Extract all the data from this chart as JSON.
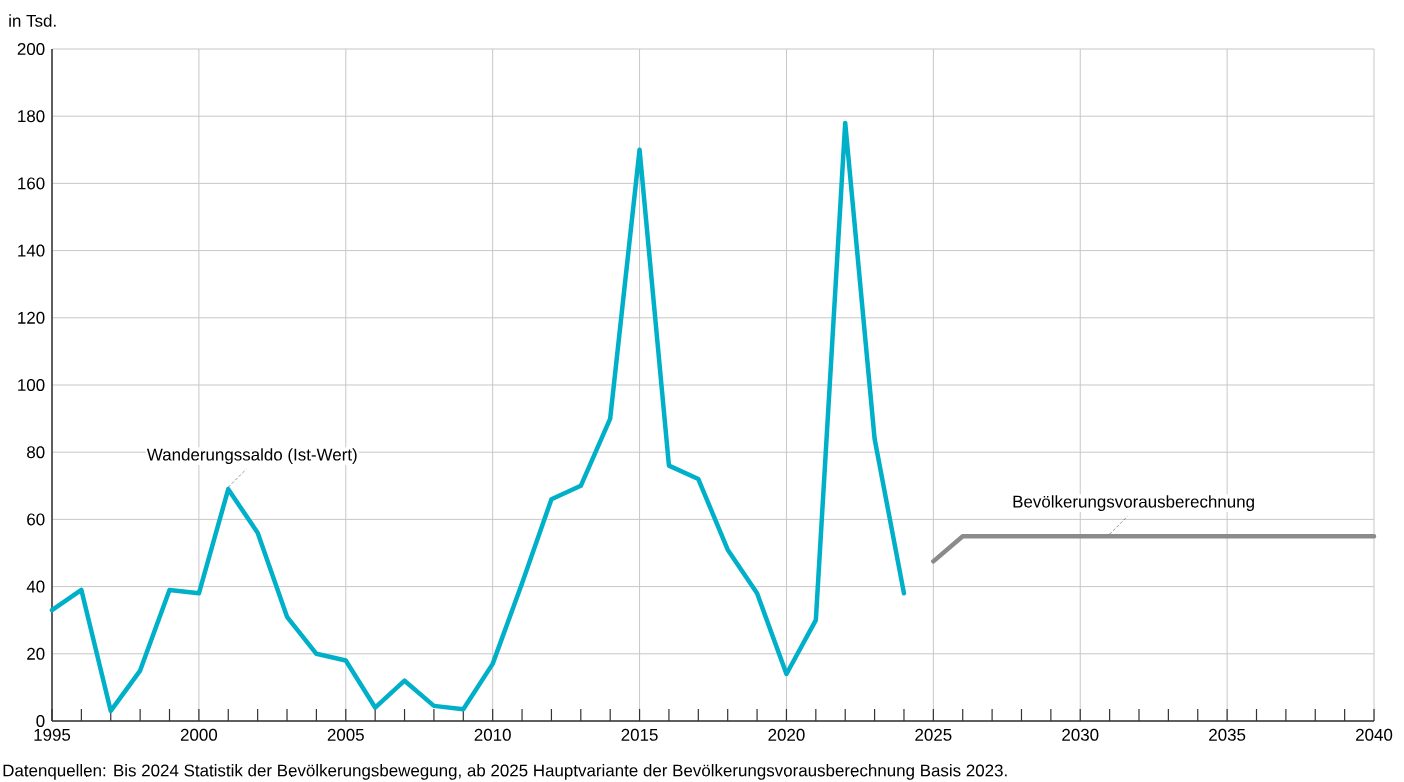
{
  "chart_data": {
    "type": "line",
    "ylabel": "in Tsd.",
    "xlim": [
      1995,
      2040
    ],
    "ylim": [
      0,
      200
    ],
    "xticks": [
      1995,
      {
        "value": 1996,
        "label": null
      },
      {
        "value": 1997,
        "label": null
      },
      {
        "value": 1998,
        "label": null
      },
      {
        "value": 1999,
        "label": null
      },
      2000,
      {
        "value": 2001,
        "label": null
      },
      {
        "value": 2002,
        "label": null
      },
      {
        "value": 2003,
        "label": null
      },
      {
        "value": 2004,
        "label": null
      },
      2005,
      {
        "value": 2006,
        "label": null
      },
      {
        "value": 2007,
        "label": null
      },
      {
        "value": 2008,
        "label": null
      },
      {
        "value": 2009,
        "label": null
      },
      2010,
      {
        "value": 2011,
        "label": null
      },
      {
        "value": 2012,
        "label": null
      },
      {
        "value": 2013,
        "label": null
      },
      {
        "value": 2014,
        "label": null
      },
      2015,
      {
        "value": 2016,
        "label": null
      },
      {
        "value": 2017,
        "label": null
      },
      {
        "value": 2018,
        "label": null
      },
      {
        "value": 2019,
        "label": null
      },
      2020,
      {
        "value": 2021,
        "label": null
      },
      {
        "value": 2022,
        "label": null
      },
      {
        "value": 2023,
        "label": null
      },
      {
        "value": 2024,
        "label": null
      },
      2025,
      {
        "value": 2026,
        "label": null
      },
      {
        "value": 2027,
        "label": null
      },
      {
        "value": 2028,
        "label": null
      },
      {
        "value": 2029,
        "label": null
      },
      2030,
      {
        "value": 2031,
        "label": null
      },
      {
        "value": 2032,
        "label": null
      },
      {
        "value": 2033,
        "label": null
      },
      {
        "value": 2034,
        "label": null
      },
      2035,
      {
        "value": 2036,
        "label": null
      },
      {
        "value": 2037,
        "label": null
      },
      {
        "value": 2038,
        "label": null
      },
      {
        "value": 2039,
        "label": null
      },
      2040
    ],
    "yticks": [
      0,
      20,
      40,
      60,
      80,
      100,
      120,
      140,
      160,
      180,
      200
    ],
    "grid": true,
    "line_style": "solid",
    "marker": "none",
    "series": [
      {
        "color": "#00b0c8",
        "x": [
          1995,
          1996,
          1997,
          1998,
          1999,
          2000,
          2001,
          2002,
          2003,
          2004,
          2005,
          2006,
          2007,
          2008,
          2009,
          2010,
          2011,
          2012,
          2013,
          2014,
          2015,
          2016,
          2017,
          2018,
          2019,
          2020,
          2021,
          2022,
          2023,
          2024
        ],
        "values": [
          33,
          39,
          3,
          15,
          39,
          38,
          69,
          56,
          31,
          20,
          18,
          4,
          12,
          4.5,
          3.5,
          17,
          41,
          66,
          70,
          90,
          170,
          76,
          72,
          51,
          38,
          14,
          30,
          178,
          84,
          38
        ]
      },
      {
        "color": "#8c8a8c",
        "x": [
          2025,
          2026,
          2027,
          2028,
          2029,
          2030,
          2031,
          2032,
          2033,
          2034,
          2035,
          2036,
          2037,
          2038,
          2039,
          2040
        ],
        "values": [
          47.5,
          55,
          55,
          55,
          55,
          55,
          55,
          55,
          55,
          55,
          55,
          55,
          55,
          55,
          55,
          55
        ]
      }
    ],
    "annotations": [
      {
        "text": "Wanderungssaldo (Ist-Wert)",
        "x": 2001,
        "y": 69
      },
      {
        "text": "Bevölkerungsvorausberechnung",
        "x": 2031,
        "y": 55
      },
      "Datenquellen: Bis 2024 Statistik der Bevölkerungsbewegung, ab 2025 Hauptvariante der Bevölkerungsvorausberechnung Basis 2023."
    ]
  }
}
